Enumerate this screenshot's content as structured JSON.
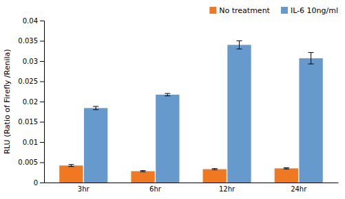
{
  "chart_data": {
    "type": "bar",
    "categories": [
      "3hr",
      "6hr",
      "12hr",
      "24hr"
    ],
    "series": [
      {
        "name": "No treatment",
        "color": "#F07820",
        "values": [
          0.0042,
          0.0028,
          0.0033,
          0.0035
        ],
        "errors": [
          0.00025,
          0.00015,
          0.00015,
          0.00015
        ]
      },
      {
        "name": "IL-6 10ng/ml",
        "color": "#6699CC",
        "values": [
          0.0184,
          0.0217,
          0.034,
          0.0307
        ],
        "errors": [
          0.0004,
          0.0003,
          0.001,
          0.0014
        ]
      }
    ],
    "ylabel": "RLU (Ratio of Firefly /Renila)",
    "ylim": [
      0,
      0.04
    ],
    "yticks": [
      0,
      0.005,
      0.01,
      0.015,
      0.02,
      0.025,
      0.03,
      0.035,
      0.04
    ],
    "grid": false,
    "legend": "upper right"
  }
}
